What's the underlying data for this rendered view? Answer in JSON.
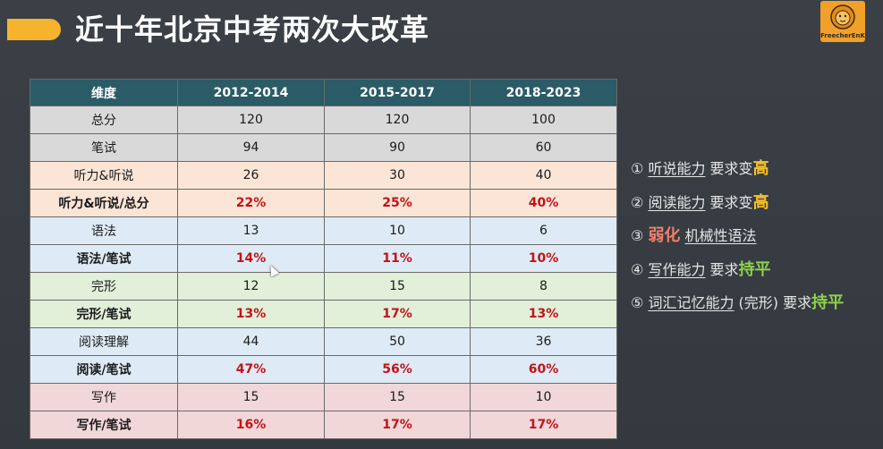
{
  "title": "近十年北京中考两次大改革",
  "logo_text": "FreecherEnK",
  "table": {
    "headers": [
      "维度",
      "2012-2014",
      "2015-2017",
      "2018-2023"
    ],
    "rows": [
      {
        "label": "总分",
        "values": [
          "120",
          "120",
          "100"
        ]
      },
      {
        "label": "笔试",
        "values": [
          "94",
          "90",
          "60"
        ]
      },
      {
        "label": "听力&听说",
        "values": [
          "26",
          "30",
          "40"
        ]
      },
      {
        "label": "听力&听说/总分",
        "values": [
          "22%",
          "25%",
          "40%"
        ]
      },
      {
        "label": "语法",
        "values": [
          "13",
          "10",
          "6"
        ]
      },
      {
        "label": "语法/笔试",
        "values": [
          "14%",
          "11%",
          "10%"
        ]
      },
      {
        "label": "完形",
        "values": [
          "12",
          "15",
          "8"
        ]
      },
      {
        "label": "完形/笔试",
        "values": [
          "13%",
          "17%",
          "13%"
        ]
      },
      {
        "label": "阅读理解",
        "values": [
          "44",
          "50",
          "36"
        ]
      },
      {
        "label": "阅读/笔试",
        "values": [
          "47%",
          "56%",
          "60%"
        ]
      },
      {
        "label": "写作",
        "values": [
          "15",
          "15",
          "10"
        ]
      },
      {
        "label": "写作/笔试",
        "values": [
          "16%",
          "17%",
          "17%"
        ]
      }
    ]
  },
  "notes": [
    {
      "num": "①",
      "subject": "听说能力",
      "text": "要求变",
      "highlight": "高"
    },
    {
      "num": "②",
      "subject": "阅读能力",
      "text": "要求变",
      "highlight": "高"
    },
    {
      "num": "③",
      "highlight": "弱化",
      "subject": "机械性语法"
    },
    {
      "num": "④",
      "subject": "写作能力",
      "text": "要求",
      "highlight": "持平"
    },
    {
      "num": "⑤",
      "subject": "词汇记忆能力",
      "paren": "(完形)",
      "text": "要求",
      "highlight": "持平"
    }
  ],
  "colors": {
    "accent": "#f5b32e",
    "header_bg": "#2b5b67",
    "percent_red": "#c0141a",
    "highlight_yellow": "#f5c02b",
    "highlight_red": "#f07f6b",
    "highlight_green": "#8ed14a"
  }
}
